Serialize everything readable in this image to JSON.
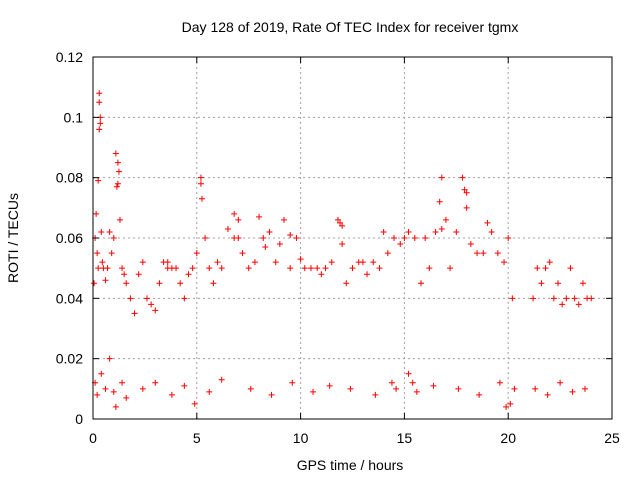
{
  "chart_data": {
    "type": "scatter",
    "title": "Day 128 of 2019, Rate Of TEC Index for receiver tgmx",
    "xlabel": "GPS time / hours",
    "ylabel": "ROTI / TECUs",
    "xlim": [
      0,
      24
    ],
    "ylim": [
      0,
      0.12
    ],
    "x_ticks": [
      0,
      5,
      10,
      15,
      20,
      25
    ],
    "y_ticks": [
      0,
      0.02,
      0.04,
      0.06,
      0.08,
      0.1,
      0.12
    ],
    "x_tick_labels": [
      "0",
      "5",
      "10",
      "15",
      "20",
      "25"
    ],
    "y_tick_labels": [
      "0",
      "0.02",
      "0.04",
      "0.06",
      "0.08",
      "0.1",
      "0.12"
    ],
    "grid": true,
    "marker": "+",
    "marker_color": "#ff0000",
    "series": [
      {
        "name": "ROTI",
        "x": [
          0.05,
          0.1,
          0.15,
          0.2,
          0.25,
          0.3,
          0.35,
          0.4,
          0.45,
          0.5,
          0.6,
          0.7,
          0.8,
          0.9,
          1.0,
          1.1,
          1.2,
          1.3,
          1.4,
          1.5,
          1.6,
          1.8,
          2.0,
          2.2,
          2.4,
          2.6,
          2.8,
          3.0,
          3.2,
          3.4,
          3.6,
          3.8,
          4.0,
          4.2,
          4.4,
          4.6,
          4.8,
          5.0,
          5.2,
          5.4,
          5.6,
          5.8,
          6.0,
          6.2,
          6.5,
          6.8,
          7.0,
          7.2,
          7.5,
          7.8,
          8.0,
          8.2,
          8.5,
          8.8,
          9.0,
          9.2,
          9.5,
          9.8,
          10.0,
          10.2,
          10.5,
          10.8,
          11.0,
          11.2,
          11.5,
          11.8,
          12.0,
          12.2,
          12.5,
          12.8,
          13.0,
          13.2,
          13.5,
          13.8,
          14.0,
          14.2,
          14.5,
          14.8,
          15.0,
          15.2,
          15.5,
          15.8,
          16.0,
          16.2,
          16.5,
          16.8,
          17.0,
          17.2,
          17.5,
          17.8,
          18.0,
          18.2,
          18.5,
          18.8,
          19.0,
          19.2,
          19.5,
          19.8,
          20.0,
          20.2,
          21.2,
          21.4,
          21.6,
          21.8,
          22.0,
          22.2,
          22.4,
          22.6,
          22.8,
          23.0,
          23.2,
          23.4,
          23.6,
          23.8,
          24.0,
          0.3,
          0.3,
          0.25,
          0.35,
          1.2,
          1.25,
          1.15,
          5.2,
          5.25,
          16.7,
          16.8,
          17.9,
          18.0,
          11.9,
          12.0,
          7.0,
          6.8,
          8.3,
          9.5,
          3.6,
          0.1,
          0.2,
          0.4,
          0.6,
          0.8,
          1.0,
          1.4,
          1.6,
          2.4,
          3.0,
          3.8,
          4.4,
          5.6,
          6.2,
          7.6,
          8.6,
          9.6,
          10.6,
          11.4,
          12.4,
          13.6,
          14.4,
          14.6,
          15.6,
          16.4,
          17.6,
          18.6,
          19.6,
          19.9,
          20.1,
          21.3,
          21.9,
          22.5,
          23.1,
          23.7,
          15.2,
          15.4,
          20.3,
          1.1,
          4.9
        ],
        "y": [
          0.045,
          0.06,
          0.068,
          0.055,
          0.05,
          0.108,
          0.098,
          0.062,
          0.052,
          0.05,
          0.046,
          0.05,
          0.062,
          0.055,
          0.06,
          0.088,
          0.078,
          0.066,
          0.05,
          0.048,
          0.045,
          0.04,
          0.035,
          0.048,
          0.052,
          0.04,
          0.038,
          0.036,
          0.045,
          0.052,
          0.05,
          0.05,
          0.05,
          0.045,
          0.04,
          0.048,
          0.05,
          0.055,
          0.08,
          0.06,
          0.05,
          0.045,
          0.052,
          0.05,
          0.063,
          0.068,
          0.06,
          0.055,
          0.05,
          0.052,
          0.067,
          0.06,
          0.062,
          0.052,
          0.058,
          0.066,
          0.05,
          0.06,
          0.053,
          0.05,
          0.05,
          0.05,
          0.048,
          0.05,
          0.052,
          0.066,
          0.058,
          0.045,
          0.05,
          0.052,
          0.052,
          0.048,
          0.052,
          0.05,
          0.062,
          0.055,
          0.06,
          0.058,
          0.06,
          0.062,
          0.06,
          0.045,
          0.06,
          0.05,
          0.062,
          0.08,
          0.066,
          0.05,
          0.062,
          0.08,
          0.075,
          0.058,
          0.055,
          0.055,
          0.065,
          0.062,
          0.055,
          0.052,
          0.06,
          0.04,
          0.04,
          0.05,
          0.045,
          0.05,
          0.052,
          0.04,
          0.045,
          0.038,
          0.04,
          0.05,
          0.04,
          0.038,
          0.045,
          0.04,
          0.04,
          0.105,
          0.096,
          0.079,
          0.1,
          0.085,
          0.082,
          0.077,
          0.078,
          0.073,
          0.072,
          0.063,
          0.076,
          0.07,
          0.065,
          0.064,
          0.066,
          0.06,
          0.057,
          0.061,
          0.052,
          0.012,
          0.008,
          0.015,
          0.01,
          0.02,
          0.009,
          0.012,
          0.007,
          0.01,
          0.012,
          0.008,
          0.011,
          0.009,
          0.013,
          0.01,
          0.008,
          0.012,
          0.009,
          0.011,
          0.01,
          0.008,
          0.012,
          0.01,
          0.009,
          0.011,
          0.01,
          0.008,
          0.012,
          0.004,
          0.005,
          0.01,
          0.008,
          0.012,
          0.009,
          0.01,
          0.015,
          0.012,
          0.01,
          0.004,
          0.005
        ]
      }
    ]
  }
}
